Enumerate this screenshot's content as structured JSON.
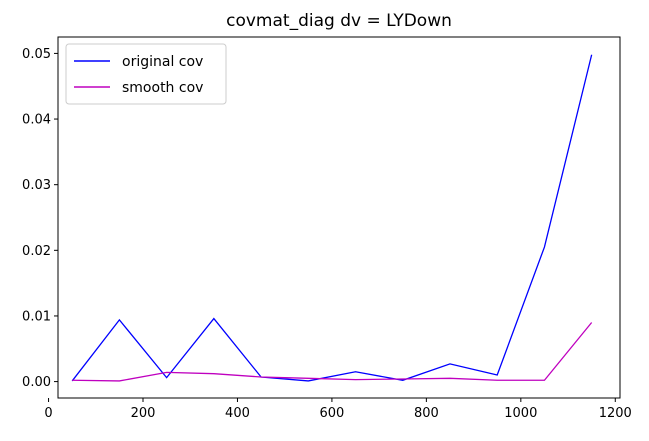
{
  "chart_data": {
    "type": "line",
    "title": "covmat_diag dv = LYDown",
    "xlabel": "",
    "ylabel": "",
    "xlim": [
      20,
      1210
    ],
    "ylim": [
      -0.0025,
      0.0525
    ],
    "xticks": [
      0,
      200,
      400,
      600,
      800,
      1000,
      1200
    ],
    "xtick_labels": [
      "0",
      "200",
      "400",
      "600",
      "800",
      "1000",
      "1200"
    ],
    "yticks": [
      0.0,
      0.01,
      0.02,
      0.03,
      0.04,
      0.05
    ],
    "ytick_labels": [
      "0.00",
      "0.01",
      "0.02",
      "0.03",
      "0.04",
      "0.05"
    ],
    "grid": false,
    "legend_position": "upper-left",
    "x": [
      50,
      150,
      250,
      350,
      450,
      550,
      650,
      750,
      850,
      950,
      1050,
      1150
    ],
    "series": [
      {
        "name": "original cov",
        "color": "#0000ff",
        "values": [
          0.0001,
          0.0094,
          0.0006,
          0.0096,
          0.0007,
          0.0001,
          0.0015,
          0.0002,
          0.0027,
          0.001,
          0.0205,
          0.0498
        ]
      },
      {
        "name": "smooth cov",
        "color": "#bf00bf",
        "values": [
          0.0002,
          0.0001,
          0.0014,
          0.0012,
          0.0007,
          0.0005,
          0.0003,
          0.0004,
          0.0005,
          0.0002,
          0.0002,
          0.009
        ]
      }
    ]
  }
}
